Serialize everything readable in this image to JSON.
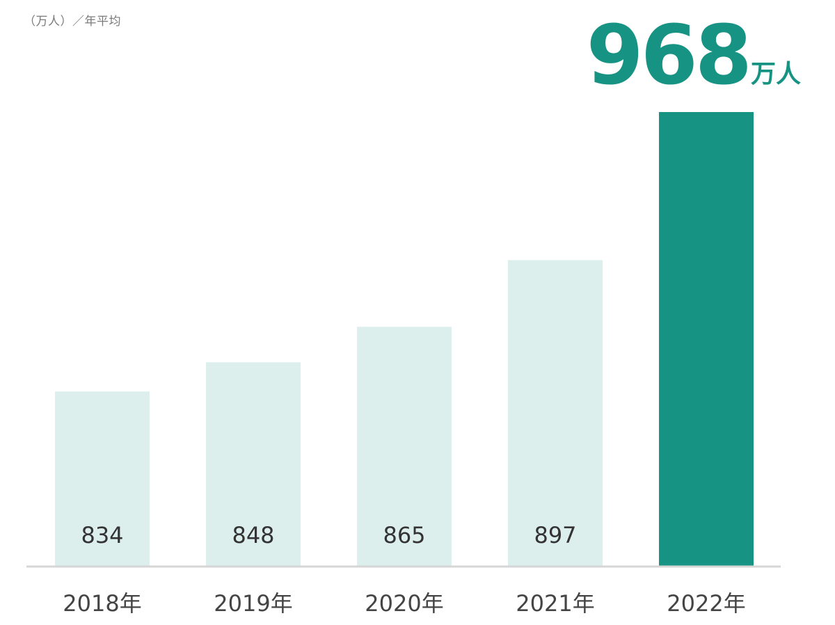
{
  "unit_note": "（万人）／年平均",
  "highlight": {
    "value": "968",
    "unit": "万人"
  },
  "colors": {
    "bar_light": "#dcefed",
    "bar_highlight": "#179383",
    "axis": "#d6d6d6",
    "highlight_text": "#179383"
  },
  "chart_data": {
    "type": "bar",
    "categories": [
      "2018年",
      "2019年",
      "2020年",
      "2021年",
      "2022年"
    ],
    "values": [
      834,
      848,
      865,
      897,
      968
    ],
    "value_labels": [
      "834",
      "848",
      "865",
      "897",
      ""
    ],
    "highlight_index": 4,
    "title": "",
    "xlabel": "",
    "ylabel": "（万人）／年平均",
    "ylim": [
      750,
      970
    ],
    "grid": false,
    "legend": "none"
  }
}
